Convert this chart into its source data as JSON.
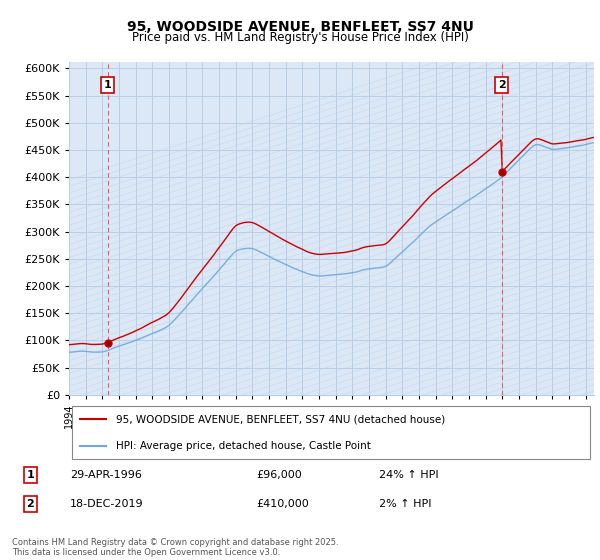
{
  "title1": "95, WOODSIDE AVENUE, BENFLEET, SS7 4NU",
  "title2": "Price paid vs. HM Land Registry's House Price Index (HPI)",
  "ylim": [
    0,
    612500
  ],
  "yticks": [
    0,
    50000,
    100000,
    150000,
    200000,
    250000,
    300000,
    350000,
    400000,
    450000,
    500000,
    550000,
    600000
  ],
  "ytick_labels": [
    "£0",
    "£50K",
    "£100K",
    "£150K",
    "£200K",
    "£250K",
    "£300K",
    "£350K",
    "£400K",
    "£450K",
    "£500K",
    "£550K",
    "£600K"
  ],
  "hpi_color": "#6fa8dc",
  "price_color": "#cc0000",
  "dashed_color": "#e06060",
  "bg_color": "#ffffff",
  "plot_bg": "#dce8f5",
  "grid_color": "#b8cfe8",
  "hatch_color": "#c8d8ee",
  "legend_label1": "95, WOODSIDE AVENUE, BENFLEET, SS7 4NU (detached house)",
  "legend_label2": "HPI: Average price, detached house, Castle Point",
  "annotation1_date": "29-APR-1996",
  "annotation1_price": "£96,000",
  "annotation1_hpi": "24% ↑ HPI",
  "annotation2_date": "18-DEC-2019",
  "annotation2_price": "£410,000",
  "annotation2_hpi": "2% ↑ HPI",
  "footnote": "Contains HM Land Registry data © Crown copyright and database right 2025.\nThis data is licensed under the Open Government Licence v3.0.",
  "sale1_x": 1996.33,
  "sale1_y": 96000,
  "sale2_x": 2019.96,
  "sale2_y": 410000,
  "xmin": 1994.0,
  "xmax": 2025.5
}
